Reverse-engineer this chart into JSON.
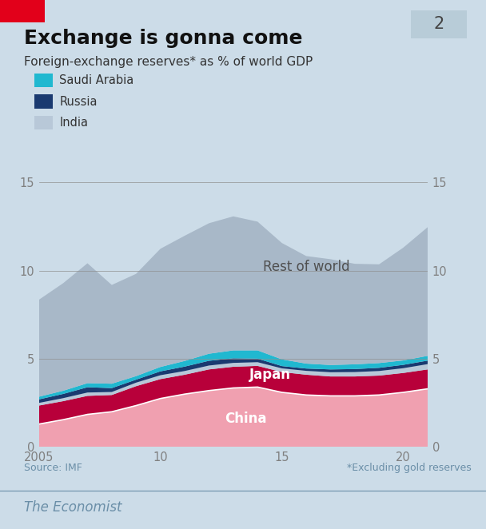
{
  "title": "Exchange is gonna come",
  "subtitle": "Foreign-exchange reserves* as % of world GDP",
  "source": "Source: IMF",
  "footnote": "*Excluding gold reserves",
  "background_color": "#ccdce8",
  "panel_number": "2",
  "years": [
    2005,
    2006,
    2007,
    2008,
    2009,
    2010,
    2011,
    2012,
    2013,
    2014,
    2015,
    2016,
    2017,
    2018,
    2019,
    2020,
    2021
  ],
  "china": [
    1.3,
    1.55,
    1.85,
    2.0,
    2.35,
    2.75,
    3.0,
    3.2,
    3.35,
    3.4,
    3.1,
    2.95,
    2.9,
    2.9,
    2.95,
    3.1,
    3.3
  ],
  "japan": [
    1.05,
    1.05,
    1.05,
    0.95,
    1.1,
    1.1,
    1.1,
    1.2,
    1.2,
    1.2,
    1.15,
    1.15,
    1.1,
    1.1,
    1.1,
    1.1,
    1.1
  ],
  "india": [
    0.15,
    0.17,
    0.19,
    0.17,
    0.2,
    0.22,
    0.21,
    0.22,
    0.22,
    0.21,
    0.21,
    0.22,
    0.24,
    0.25,
    0.26,
    0.27,
    0.3
  ],
  "russia": [
    0.2,
    0.24,
    0.3,
    0.22,
    0.17,
    0.22,
    0.25,
    0.27,
    0.26,
    0.2,
    0.13,
    0.13,
    0.16,
    0.17,
    0.18,
    0.19,
    0.2
  ],
  "saudi_arabia": [
    0.15,
    0.18,
    0.23,
    0.25,
    0.2,
    0.25,
    0.32,
    0.4,
    0.45,
    0.47,
    0.38,
    0.28,
    0.25,
    0.27,
    0.27,
    0.25,
    0.27
  ],
  "rest_of_world": [
    5.5,
    6.1,
    6.8,
    5.6,
    5.8,
    6.7,
    7.1,
    7.4,
    7.6,
    7.3,
    6.6,
    6.1,
    6.0,
    5.7,
    5.6,
    6.4,
    7.3
  ],
  "color_china": "#f0a0b0",
  "color_japan": "#b8003a",
  "color_india": "#b8c8d8",
  "color_russia": "#1a3a70",
  "color_saudi_arabia": "#20b8d0",
  "color_rest_of_world": "#a8b8c8",
  "ylim": [
    0,
    15
  ],
  "yticks": [
    0,
    5,
    10,
    15
  ],
  "xticks": [
    2005,
    2010,
    2015,
    2020
  ],
  "xticklabels": [
    "2005",
    "10",
    "15",
    "20"
  ],
  "economist_red": "#e2001a",
  "tick_color": "#808080",
  "label_color": "#505050"
}
